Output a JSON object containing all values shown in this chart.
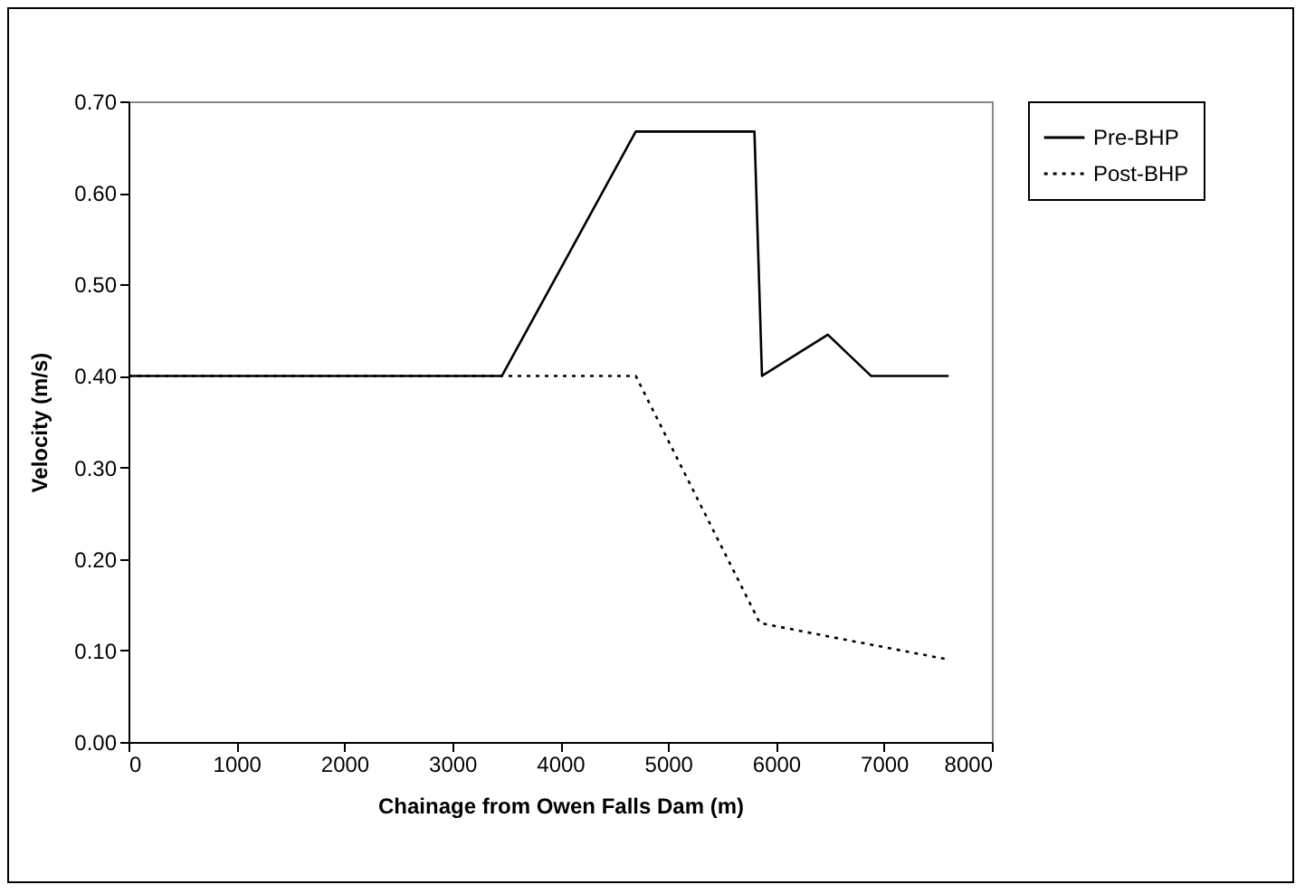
{
  "chart_data": {
    "type": "line",
    "xlabel": "Chainage from Owen Falls Dam (m)",
    "ylabel": "Velocity (m/s)",
    "xlim": [
      0,
      8000
    ],
    "xticks": [
      0,
      1000,
      2000,
      3000,
      4000,
      5000,
      6000,
      7000,
      8000
    ],
    "ylim": [
      0,
      0.7
    ],
    "yticks": [
      {
        "value": 0,
        "label": "0.00"
      },
      {
        "value": 0.1,
        "label": "0.10"
      },
      {
        "value": 0.2,
        "label": "0.20"
      },
      {
        "value": 0.3,
        "label": "0.30"
      },
      {
        "value": 0.4,
        "label": "0.40"
      },
      {
        "value": 0.5,
        "label": "0.50"
      },
      {
        "value": 0.6,
        "label": "0.60"
      },
      {
        "value": 0.7,
        "label": "0.70"
      }
    ],
    "grid": false,
    "legend": "right",
    "marker": "none",
    "series": [
      {
        "name": "Pre-BHP",
        "color": "#000000",
        "line_style": "solid",
        "x": [
          0,
          3460,
          4700,
          5800,
          5870,
          6480,
          6880,
          7600
        ],
        "values": [
          0.4,
          0.4,
          0.667,
          0.667,
          0.4,
          0.445,
          0.4,
          0.4
        ]
      },
      {
        "name": "Post-BHP",
        "color": "#000000",
        "line_style": "dotted",
        "x": [
          0,
          4700,
          5850,
          6500,
          7600
        ],
        "values": [
          0.4,
          0.4,
          0.13,
          0.115,
          0.09
        ]
      }
    ]
  }
}
